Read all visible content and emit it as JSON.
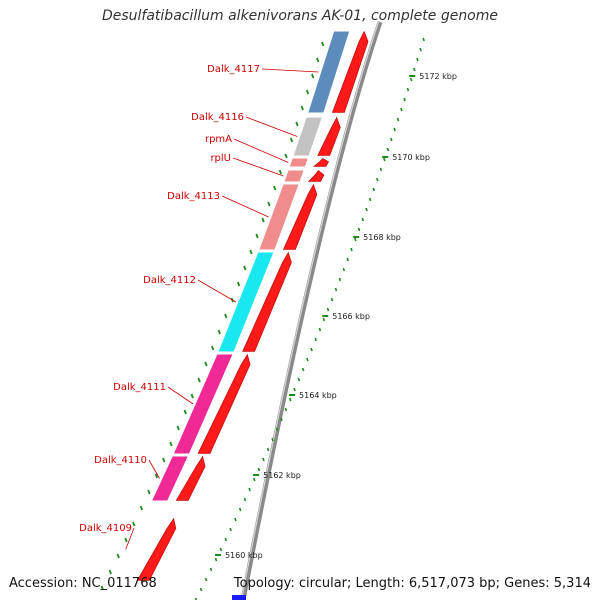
{
  "title": "Desulfatibacillum alkenivorans AK-01, complete genome",
  "accession_text": "Accession: NC_011768",
  "topology_text": "Topology: circular; Length: 6,517,073 bp; Genes: 5,314",
  "colors": {
    "backbone": "#8a8a8a",
    "cds": "#ff1a1a",
    "tick": "#1e8a1e",
    "label": "#cc0000"
  },
  "ticks": [
    {
      "label": "5172 kbp"
    },
    {
      "label": "5170 kbp"
    },
    {
      "label": "5168 kbp"
    },
    {
      "label": "5166 kbp"
    },
    {
      "label": "5164 kbp"
    },
    {
      "label": "5162 kbp"
    },
    {
      "label": "5160 kbp"
    }
  ],
  "genes": [
    {
      "label": "Dalk_4117",
      "category_color": "#4a7fb5"
    },
    {
      "label": "Dalk_4116",
      "category_color": "#bdbdbd"
    },
    {
      "label": "rpmA",
      "category_color": "#f08080"
    },
    {
      "label": "rplU",
      "category_color": "#f08080"
    },
    {
      "label": "Dalk_4113",
      "category_color": "#f08080"
    },
    {
      "label": "Dalk_4112",
      "category_color": "#00e5ee"
    },
    {
      "label": "Dalk_4111",
      "category_color": "#ee1289"
    },
    {
      "label": "Dalk_4110",
      "category_color": "#ee1289"
    },
    {
      "label": "Dalk_4109",
      "category_color": null
    }
  ]
}
